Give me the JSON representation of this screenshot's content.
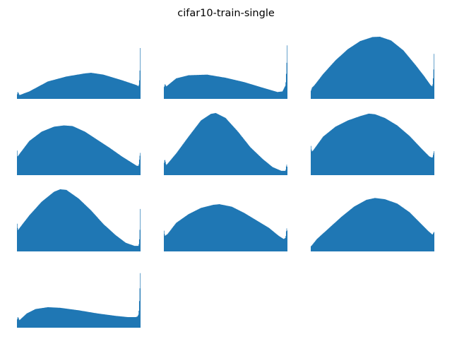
{
  "figure": {
    "title": "cifar10-train-single"
  },
  "chart_data": {
    "type": "histogram-grid",
    "title": "cifar10-train-single",
    "axes_visible": false,
    "grid": false,
    "legend": "none",
    "bar_color": "#1f77b4",
    "x_range": [
      0,
      1
    ],
    "y_unit": "relative frequency (normalized to panel max)",
    "panels": [
      {
        "profile": [
          [
            0,
            0.06
          ],
          [
            0.008,
            0.12
          ],
          [
            0.02,
            0.06
          ],
          [
            0.1,
            0.12
          ],
          [
            0.25,
            0.28
          ],
          [
            0.4,
            0.36
          ],
          [
            0.55,
            0.41
          ],
          [
            0.6,
            0.42
          ],
          [
            0.7,
            0.39
          ],
          [
            0.85,
            0.3
          ],
          [
            0.97,
            0.22
          ],
          [
            0.985,
            0.2
          ],
          [
            0.993,
            0.35
          ],
          [
            1,
            1.0
          ]
        ]
      },
      {
        "profile": [
          [
            0,
            0.18
          ],
          [
            0.01,
            0.24
          ],
          [
            0.02,
            0.2
          ],
          [
            0.1,
            0.33
          ],
          [
            0.2,
            0.38
          ],
          [
            0.35,
            0.39
          ],
          [
            0.5,
            0.34
          ],
          [
            0.65,
            0.27
          ],
          [
            0.8,
            0.18
          ],
          [
            0.92,
            0.11
          ],
          [
            0.96,
            0.12
          ],
          [
            0.985,
            0.22
          ],
          [
            0.993,
            0.5
          ],
          [
            1,
            1.0
          ]
        ]
      },
      {
        "profile": [
          [
            0,
            0.12
          ],
          [
            0.01,
            0.18
          ],
          [
            0.03,
            0.22
          ],
          [
            0.1,
            0.4
          ],
          [
            0.2,
            0.62
          ],
          [
            0.3,
            0.8
          ],
          [
            0.4,
            0.93
          ],
          [
            0.5,
            0.995
          ],
          [
            0.56,
            1.0
          ],
          [
            0.65,
            0.94
          ],
          [
            0.75,
            0.78
          ],
          [
            0.85,
            0.54
          ],
          [
            0.92,
            0.36
          ],
          [
            0.97,
            0.22
          ],
          [
            0.985,
            0.2
          ],
          [
            0.993,
            0.4
          ],
          [
            1,
            0.85
          ]
        ]
      },
      {
        "profile": [
          [
            0,
            0.44
          ],
          [
            0.006,
            0.3
          ],
          [
            0.02,
            0.34
          ],
          [
            0.1,
            0.55
          ],
          [
            0.2,
            0.7
          ],
          [
            0.3,
            0.78
          ],
          [
            0.38,
            0.8
          ],
          [
            0.45,
            0.79
          ],
          [
            0.55,
            0.7
          ],
          [
            0.65,
            0.57
          ],
          [
            0.75,
            0.44
          ],
          [
            0.85,
            0.3
          ],
          [
            0.93,
            0.2
          ],
          [
            0.97,
            0.15
          ],
          [
            0.985,
            0.15
          ],
          [
            0.993,
            0.3
          ],
          [
            1,
            0.38
          ]
        ]
      },
      {
        "profile": [
          [
            0,
            0.18
          ],
          [
            0.008,
            0.26
          ],
          [
            0.02,
            0.16
          ],
          [
            0.1,
            0.35
          ],
          [
            0.2,
            0.62
          ],
          [
            0.3,
            0.88
          ],
          [
            0.38,
            0.985
          ],
          [
            0.42,
            1.0
          ],
          [
            0.5,
            0.92
          ],
          [
            0.6,
            0.7
          ],
          [
            0.7,
            0.45
          ],
          [
            0.8,
            0.26
          ],
          [
            0.88,
            0.13
          ],
          [
            0.95,
            0.07
          ],
          [
            0.985,
            0.07
          ],
          [
            0.993,
            0.18
          ],
          [
            1,
            0.12
          ]
        ]
      },
      {
        "profile": [
          [
            0,
            0.5
          ],
          [
            0.008,
            0.38
          ],
          [
            0.02,
            0.4
          ],
          [
            0.1,
            0.62
          ],
          [
            0.2,
            0.78
          ],
          [
            0.3,
            0.88
          ],
          [
            0.4,
            0.95
          ],
          [
            0.47,
            0.99
          ],
          [
            0.52,
            0.98
          ],
          [
            0.6,
            0.92
          ],
          [
            0.7,
            0.8
          ],
          [
            0.8,
            0.63
          ],
          [
            0.9,
            0.42
          ],
          [
            0.96,
            0.3
          ],
          [
            0.985,
            0.28
          ],
          [
            0.993,
            0.35
          ],
          [
            1,
            0.4
          ]
        ]
      },
      {
        "profile": [
          [
            0,
            0.48
          ],
          [
            0.008,
            0.34
          ],
          [
            0.03,
            0.4
          ],
          [
            0.1,
            0.58
          ],
          [
            0.2,
            0.8
          ],
          [
            0.3,
            0.96
          ],
          [
            0.35,
            1.0
          ],
          [
            0.4,
            0.99
          ],
          [
            0.5,
            0.85
          ],
          [
            0.6,
            0.66
          ],
          [
            0.7,
            0.44
          ],
          [
            0.8,
            0.26
          ],
          [
            0.88,
            0.14
          ],
          [
            0.95,
            0.09
          ],
          [
            0.985,
            0.09
          ],
          [
            0.993,
            0.25
          ],
          [
            1,
            0.85
          ]
        ]
      },
      {
        "profile": [
          [
            0,
            0.36
          ],
          [
            0.008,
            0.25
          ],
          [
            0.03,
            0.28
          ],
          [
            0.1,
            0.46
          ],
          [
            0.2,
            0.6
          ],
          [
            0.3,
            0.7
          ],
          [
            0.4,
            0.75
          ],
          [
            0.45,
            0.76
          ],
          [
            0.55,
            0.72
          ],
          [
            0.65,
            0.62
          ],
          [
            0.75,
            0.5
          ],
          [
            0.85,
            0.38
          ],
          [
            0.93,
            0.25
          ],
          [
            0.97,
            0.2
          ],
          [
            0.985,
            0.22
          ],
          [
            0.993,
            0.38
          ],
          [
            1,
            0.32
          ]
        ]
      },
      {
        "profile": [
          [
            0,
            0.08
          ],
          [
            0.01,
            0.1
          ],
          [
            0.05,
            0.2
          ],
          [
            0.15,
            0.38
          ],
          [
            0.25,
            0.56
          ],
          [
            0.35,
            0.72
          ],
          [
            0.45,
            0.83
          ],
          [
            0.52,
            0.86
          ],
          [
            0.6,
            0.84
          ],
          [
            0.7,
            0.77
          ],
          [
            0.8,
            0.63
          ],
          [
            0.88,
            0.47
          ],
          [
            0.95,
            0.33
          ],
          [
            0.985,
            0.27
          ],
          [
            0.993,
            0.3
          ],
          [
            1,
            0.32
          ]
        ]
      },
      {
        "profile": [
          [
            0,
            0.12
          ],
          [
            0.008,
            0.18
          ],
          [
            0.02,
            0.12
          ],
          [
            0.08,
            0.23
          ],
          [
            0.15,
            0.3
          ],
          [
            0.25,
            0.33
          ],
          [
            0.35,
            0.32
          ],
          [
            0.5,
            0.28
          ],
          [
            0.65,
            0.23
          ],
          [
            0.8,
            0.19
          ],
          [
            0.9,
            0.17
          ],
          [
            0.96,
            0.17
          ],
          [
            0.975,
            0.18
          ],
          [
            0.985,
            0.22
          ],
          [
            0.992,
            0.5
          ],
          [
            1,
            1.0
          ]
        ]
      }
    ]
  }
}
